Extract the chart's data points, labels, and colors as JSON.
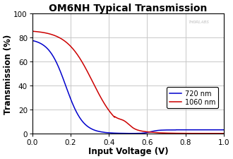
{
  "title": "OM6NH Typical Transmission",
  "xlabel": "Input Voltage (V)",
  "ylabel": "Transmission (%)",
  "xlim": [
    0.0,
    1.0
  ],
  "ylim": [
    0,
    100
  ],
  "xticks": [
    0.0,
    0.2,
    0.4,
    0.6,
    0.8,
    1.0
  ],
  "yticks": [
    0,
    20,
    40,
    60,
    80,
    100
  ],
  "line_720_color": "#0000cc",
  "line_1060_color": "#cc0000",
  "legend_labels": [
    "720 nm",
    "1060 nm"
  ],
  "watermark": "THORLABS",
  "bg_color": "#ffffff",
  "grid_color": "#c8c8c8",
  "title_fontsize": 10,
  "axis_label_fontsize": 8.5,
  "tick_fontsize": 7.5
}
